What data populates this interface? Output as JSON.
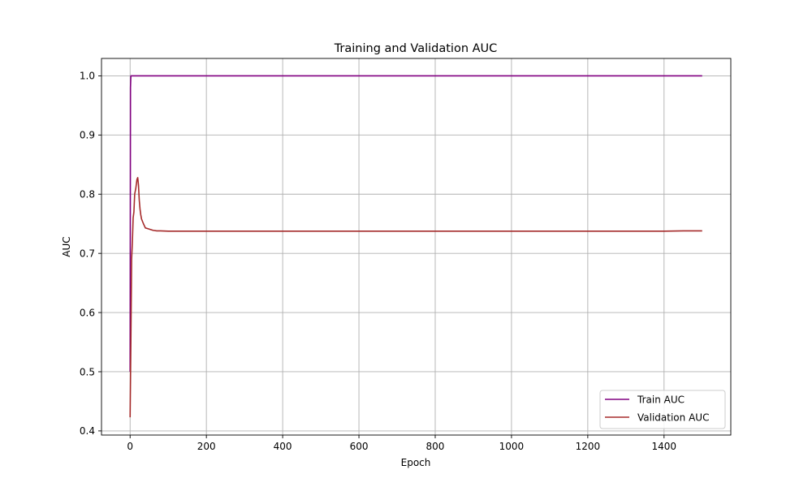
{
  "chart_data": {
    "type": "line",
    "title": "Training and Validation AUC",
    "xlabel": "Epoch",
    "ylabel": "AUC",
    "xlim": [
      -75,
      1575
    ],
    "ylim": [
      0.393,
      1.0294
    ],
    "xticks": [
      0,
      200,
      400,
      600,
      800,
      1000,
      1200,
      1400
    ],
    "yticks": [
      0.4,
      0.5,
      0.6,
      0.7,
      0.8,
      0.9,
      1.0
    ],
    "ytick_labels": [
      "0.4",
      "0.5",
      "0.6",
      "0.7",
      "0.8",
      "0.9",
      "1.0"
    ],
    "grid": true,
    "legend_position": "lower-right",
    "series": [
      {
        "name": "Train AUC",
        "color": "#800080",
        "x": [
          0,
          1,
          2,
          3,
          5,
          10,
          50,
          100,
          500,
          1000,
          1500
        ],
        "y": [
          0.5,
          0.98,
          1.0,
          1.0,
          1.0,
          1.0,
          1.0,
          1.0,
          1.0,
          1.0,
          1.0
        ]
      },
      {
        "name": "Validation AUC",
        "color": "#a52a2a",
        "x": [
          0,
          2,
          4,
          6,
          8,
          10,
          12,
          15,
          18,
          20,
          22,
          24,
          26,
          28,
          30,
          35,
          40,
          45,
          50,
          60,
          70,
          80,
          100,
          200,
          500,
          800,
          1000,
          1200,
          1400,
          1450,
          1500
        ],
        "y": [
          0.423,
          0.55,
          0.69,
          0.72,
          0.76,
          0.77,
          0.8,
          0.81,
          0.825,
          0.828,
          0.815,
          0.79,
          0.775,
          0.765,
          0.758,
          0.75,
          0.743,
          0.742,
          0.741,
          0.739,
          0.738,
          0.738,
          0.7375,
          0.7375,
          0.7375,
          0.7375,
          0.7375,
          0.7375,
          0.7375,
          0.738,
          0.738
        ]
      }
    ]
  }
}
